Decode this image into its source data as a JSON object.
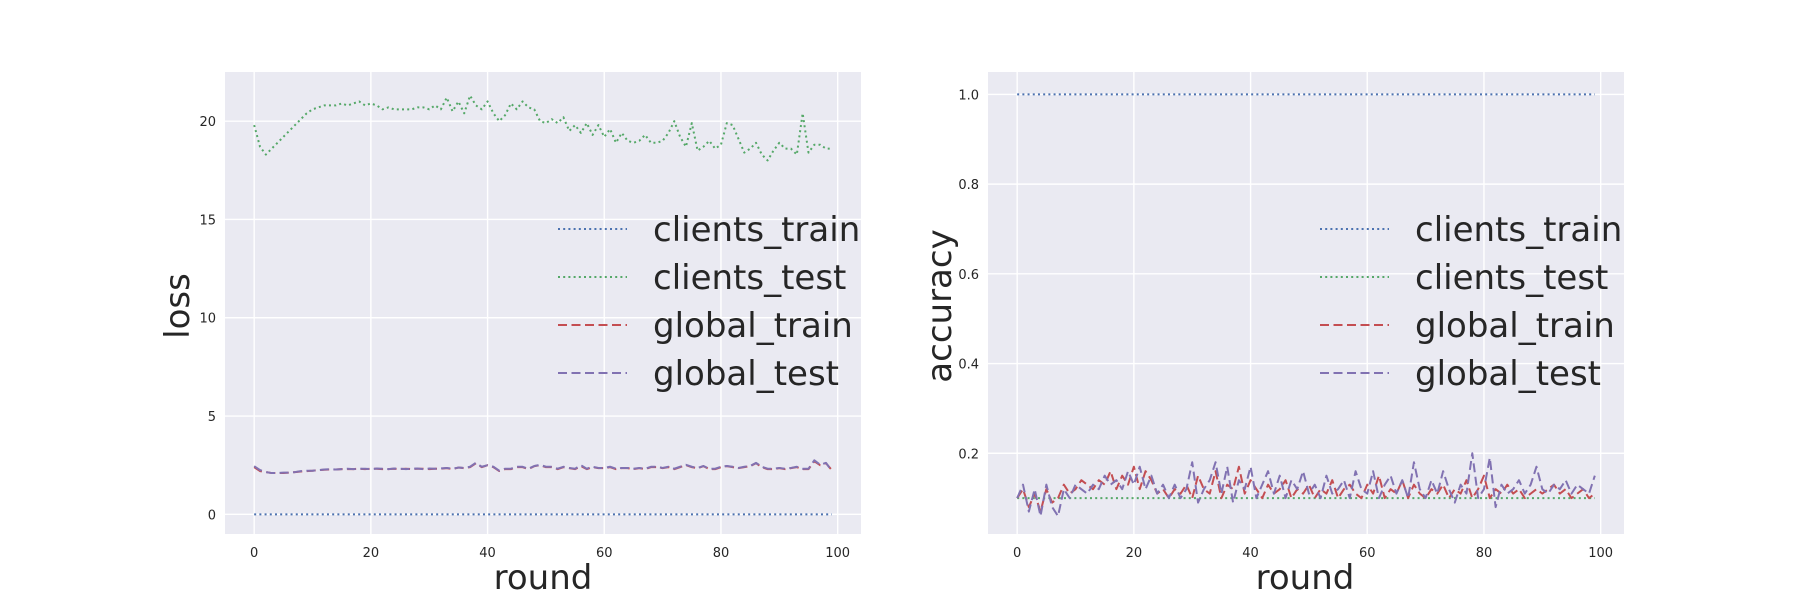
{
  "colors": {
    "clients_train": "#4c72b0",
    "clients_test": "#55a868",
    "global_train": "#c44e52",
    "global_test": "#8172b2",
    "plot_background": "#eaeaf2",
    "grid": "#ffffff"
  },
  "chart_data": [
    {
      "type": "line",
      "xlabel": "round",
      "ylabel": "loss",
      "xlim": [
        -5,
        104
      ],
      "ylim": [
        -1,
        22.5
      ],
      "xticks": [
        "0",
        "20",
        "40",
        "60",
        "80",
        "100"
      ],
      "yticks": [
        "0",
        "5",
        "10",
        "15",
        "20"
      ],
      "grid": true,
      "legend_position": "center-right",
      "series": [
        {
          "name": "clients_train",
          "style": "dotted",
          "x": [
            0,
            99
          ],
          "values": [
            0.0,
            0.0
          ]
        },
        {
          "name": "clients_test",
          "style": "dotted",
          "x": [
            0,
            1,
            2,
            3,
            4,
            5,
            6,
            7,
            8,
            9,
            10,
            11,
            12,
            13,
            14,
            15,
            16,
            17,
            18,
            19,
            20,
            21,
            22,
            23,
            24,
            25,
            26,
            27,
            28,
            29,
            30,
            31,
            32,
            33,
            34,
            35,
            36,
            37,
            38,
            39,
            40,
            41,
            42,
            43,
            44,
            45,
            46,
            47,
            48,
            49,
            50,
            51,
            52,
            53,
            54,
            55,
            56,
            57,
            58,
            59,
            60,
            61,
            62,
            63,
            64,
            65,
            66,
            67,
            68,
            69,
            70,
            71,
            72,
            73,
            74,
            75,
            76,
            77,
            78,
            79,
            80,
            81,
            82,
            83,
            84,
            85,
            86,
            87,
            88,
            89,
            90,
            91,
            92,
            93,
            94,
            95,
            96,
            97,
            98,
            99
          ],
          "values": [
            19.8,
            18.7,
            18.3,
            18.6,
            18.9,
            19.2,
            19.5,
            19.8,
            20.1,
            20.4,
            20.6,
            20.7,
            20.8,
            20.8,
            20.8,
            20.9,
            20.8,
            20.9,
            21.0,
            20.8,
            20.9,
            20.8,
            20.6,
            20.7,
            20.6,
            20.6,
            20.6,
            20.6,
            20.7,
            20.7,
            20.6,
            20.8,
            20.6,
            21.2,
            20.5,
            21.0,
            20.4,
            21.3,
            20.8,
            20.6,
            21.0,
            20.4,
            20.0,
            20.3,
            20.9,
            20.6,
            21.0,
            20.7,
            20.6,
            20.0,
            19.9,
            20.1,
            19.9,
            20.2,
            19.5,
            19.8,
            19.4,
            19.9,
            19.3,
            19.8,
            19.2,
            19.6,
            18.9,
            19.4,
            19.0,
            18.9,
            19.0,
            19.3,
            18.9,
            18.9,
            19.0,
            19.4,
            20.0,
            19.2,
            18.7,
            19.9,
            18.5,
            18.7,
            19.0,
            18.6,
            18.8,
            19.9,
            19.8,
            19.1,
            18.4,
            18.6,
            18.9,
            18.3,
            18.0,
            18.5,
            18.9,
            18.6,
            18.6,
            18.3,
            20.4,
            18.4,
            18.8,
            18.8,
            18.6,
            18.6
          ]
        },
        {
          "name": "global_train",
          "style": "dashed",
          "x": [
            0,
            1,
            2,
            3,
            4,
            5,
            6,
            7,
            8,
            9,
            10,
            11,
            12,
            13,
            14,
            15,
            16,
            17,
            18,
            19,
            20,
            21,
            22,
            23,
            24,
            25,
            26,
            27,
            28,
            29,
            30,
            31,
            32,
            33,
            34,
            35,
            36,
            37,
            38,
            39,
            40,
            41,
            42,
            43,
            44,
            45,
            46,
            47,
            48,
            49,
            50,
            51,
            52,
            53,
            54,
            55,
            56,
            57,
            58,
            59,
            60,
            61,
            62,
            63,
            64,
            65,
            66,
            67,
            68,
            69,
            70,
            71,
            72,
            73,
            74,
            75,
            76,
            77,
            78,
            79,
            80,
            81,
            82,
            83,
            84,
            85,
            86,
            87,
            88,
            89,
            90,
            91,
            92,
            93,
            94,
            95,
            96,
            97,
            98,
            99
          ],
          "values": [
            2.4,
            2.2,
            2.15,
            2.1,
            2.1,
            2.1,
            2.12,
            2.15,
            2.18,
            2.2,
            2.22,
            2.25,
            2.27,
            2.28,
            2.28,
            2.3,
            2.3,
            2.3,
            2.32,
            2.3,
            2.32,
            2.32,
            2.3,
            2.3,
            2.32,
            2.3,
            2.32,
            2.3,
            2.32,
            2.32,
            2.3,
            2.32,
            2.32,
            2.35,
            2.3,
            2.38,
            2.35,
            2.4,
            2.6,
            2.4,
            2.5,
            2.4,
            2.2,
            2.3,
            2.3,
            2.4,
            2.4,
            2.3,
            2.45,
            2.5,
            2.4,
            2.4,
            2.3,
            2.4,
            2.35,
            2.3,
            2.45,
            2.3,
            2.4,
            2.35,
            2.35,
            2.4,
            2.3,
            2.35,
            2.35,
            2.3,
            2.35,
            2.3,
            2.4,
            2.4,
            2.35,
            2.4,
            2.3,
            2.4,
            2.5,
            2.4,
            2.35,
            2.45,
            2.3,
            2.3,
            2.4,
            2.45,
            2.4,
            2.35,
            2.4,
            2.45,
            2.6,
            2.4,
            2.3,
            2.3,
            2.35,
            2.3,
            2.35,
            2.4,
            2.3,
            2.3,
            2.7,
            2.5,
            2.6,
            2.25
          ]
        },
        {
          "name": "global_test",
          "style": "dashed",
          "x": [
            0,
            1,
            2,
            3,
            4,
            5,
            6,
            7,
            8,
            9,
            10,
            11,
            12,
            13,
            14,
            15,
            16,
            17,
            18,
            19,
            20,
            21,
            22,
            23,
            24,
            25,
            26,
            27,
            28,
            29,
            30,
            31,
            32,
            33,
            34,
            35,
            36,
            37,
            38,
            39,
            40,
            41,
            42,
            43,
            44,
            45,
            46,
            47,
            48,
            49,
            50,
            51,
            52,
            53,
            54,
            55,
            56,
            57,
            58,
            59,
            60,
            61,
            62,
            63,
            64,
            65,
            66,
            67,
            68,
            69,
            70,
            71,
            72,
            73,
            74,
            75,
            76,
            77,
            78,
            79,
            80,
            81,
            82,
            83,
            84,
            85,
            86,
            87,
            88,
            89,
            90,
            91,
            92,
            93,
            94,
            95,
            96,
            97,
            98,
            99
          ],
          "values": [
            2.45,
            2.25,
            2.15,
            2.1,
            2.1,
            2.12,
            2.12,
            2.15,
            2.2,
            2.22,
            2.22,
            2.25,
            2.28,
            2.3,
            2.28,
            2.3,
            2.32,
            2.3,
            2.32,
            2.32,
            2.3,
            2.33,
            2.32,
            2.3,
            2.33,
            2.32,
            2.3,
            2.32,
            2.33,
            2.3,
            2.33,
            2.32,
            2.34,
            2.36,
            2.32,
            2.38,
            2.36,
            2.42,
            2.62,
            2.42,
            2.5,
            2.42,
            2.22,
            2.32,
            2.32,
            2.42,
            2.42,
            2.32,
            2.46,
            2.52,
            2.42,
            2.42,
            2.32,
            2.42,
            2.36,
            2.32,
            2.5,
            2.32,
            2.42,
            2.36,
            2.36,
            2.42,
            2.32,
            2.36,
            2.36,
            2.32,
            2.36,
            2.32,
            2.42,
            2.42,
            2.36,
            2.42,
            2.32,
            2.42,
            2.52,
            2.42,
            2.36,
            2.46,
            2.32,
            2.32,
            2.42,
            2.46,
            2.42,
            2.36,
            2.42,
            2.46,
            2.62,
            2.42,
            2.32,
            2.32,
            2.36,
            2.32,
            2.36,
            2.42,
            2.32,
            2.32,
            2.75,
            2.52,
            2.62,
            2.2
          ]
        }
      ]
    },
    {
      "type": "line",
      "xlabel": "round",
      "ylabel": "accuracy",
      "xlim": [
        -5,
        104
      ],
      "ylim": [
        0.02,
        1.05
      ],
      "xticks": [
        "0",
        "20",
        "40",
        "60",
        "80",
        "100"
      ],
      "yticks": [
        "0.2",
        "0.4",
        "0.6",
        "0.8",
        "1.0"
      ],
      "grid": true,
      "legend_position": "center-right",
      "series": [
        {
          "name": "clients_train",
          "style": "dotted",
          "x": [
            0,
            99
          ],
          "values": [
            1.0,
            1.0
          ]
        },
        {
          "name": "clients_test",
          "style": "dotted",
          "x": [
            0,
            99
          ],
          "values": [
            0.1,
            0.1
          ]
        },
        {
          "name": "global_train",
          "style": "dashed",
          "x": [
            0,
            1,
            2,
            3,
            4,
            5,
            6,
            7,
            8,
            9,
            10,
            11,
            12,
            13,
            14,
            15,
            16,
            17,
            18,
            19,
            20,
            21,
            22,
            23,
            24,
            25,
            26,
            27,
            28,
            29,
            30,
            31,
            32,
            33,
            34,
            35,
            36,
            37,
            38,
            39,
            40,
            41,
            42,
            43,
            44,
            45,
            46,
            47,
            48,
            49,
            50,
            51,
            52,
            53,
            54,
            55,
            56,
            57,
            58,
            59,
            60,
            61,
            62,
            63,
            64,
            65,
            66,
            67,
            68,
            69,
            70,
            71,
            72,
            73,
            74,
            75,
            76,
            77,
            78,
            79,
            80,
            81,
            82,
            83,
            84,
            85,
            86,
            87,
            88,
            89,
            90,
            91,
            92,
            93,
            94,
            95,
            96,
            97,
            98,
            99
          ],
          "values": [
            0.1,
            0.12,
            0.08,
            0.11,
            0.07,
            0.12,
            0.09,
            0.1,
            0.13,
            0.11,
            0.12,
            0.14,
            0.13,
            0.12,
            0.14,
            0.13,
            0.16,
            0.12,
            0.15,
            0.13,
            0.17,
            0.12,
            0.16,
            0.14,
            0.11,
            0.12,
            0.1,
            0.12,
            0.11,
            0.13,
            0.1,
            0.15,
            0.12,
            0.11,
            0.16,
            0.1,
            0.13,
            0.12,
            0.17,
            0.11,
            0.14,
            0.12,
            0.1,
            0.13,
            0.11,
            0.12,
            0.14,
            0.1,
            0.12,
            0.11,
            0.13,
            0.1,
            0.12,
            0.11,
            0.14,
            0.1,
            0.12,
            0.13,
            0.11,
            0.1,
            0.13,
            0.11,
            0.15,
            0.1,
            0.12,
            0.11,
            0.14,
            0.1,
            0.13,
            0.11,
            0.1,
            0.12,
            0.11,
            0.13,
            0.1,
            0.12,
            0.11,
            0.14,
            0.1,
            0.12,
            0.15,
            0.1,
            0.12,
            0.11,
            0.13,
            0.11,
            0.12,
            0.1,
            0.11,
            0.12,
            0.11,
            0.12,
            0.13,
            0.11,
            0.12,
            0.1,
            0.11,
            0.12,
            0.1,
            0.11
          ]
        },
        {
          "name": "global_test",
          "style": "dashed",
          "x": [
            0,
            1,
            2,
            3,
            4,
            5,
            6,
            7,
            8,
            9,
            10,
            11,
            12,
            13,
            14,
            15,
            16,
            17,
            18,
            19,
            20,
            21,
            22,
            23,
            24,
            25,
            26,
            27,
            28,
            29,
            30,
            31,
            32,
            33,
            34,
            35,
            36,
            37,
            38,
            39,
            40,
            41,
            42,
            43,
            44,
            45,
            46,
            47,
            48,
            49,
            50,
            51,
            52,
            53,
            54,
            55,
            56,
            57,
            58,
            59,
            60,
            61,
            62,
            63,
            64,
            65,
            66,
            67,
            68,
            69,
            70,
            71,
            72,
            73,
            74,
            75,
            76,
            77,
            78,
            79,
            80,
            81,
            82,
            83,
            84,
            85,
            86,
            87,
            88,
            89,
            90,
            91,
            92,
            93,
            94,
            95,
            96,
            97,
            98,
            99
          ],
          "values": [
            0.1,
            0.13,
            0.07,
            0.12,
            0.06,
            0.13,
            0.08,
            0.06,
            0.12,
            0.1,
            0.13,
            0.12,
            0.11,
            0.13,
            0.12,
            0.15,
            0.13,
            0.14,
            0.12,
            0.16,
            0.13,
            0.17,
            0.12,
            0.15,
            0.11,
            0.13,
            0.1,
            0.13,
            0.1,
            0.12,
            0.18,
            0.09,
            0.12,
            0.14,
            0.18,
            0.11,
            0.17,
            0.09,
            0.14,
            0.12,
            0.17,
            0.1,
            0.13,
            0.16,
            0.11,
            0.15,
            0.1,
            0.14,
            0.12,
            0.16,
            0.11,
            0.13,
            0.1,
            0.15,
            0.11,
            0.12,
            0.14,
            0.1,
            0.16,
            0.12,
            0.11,
            0.16,
            0.1,
            0.13,
            0.15,
            0.11,
            0.14,
            0.1,
            0.18,
            0.12,
            0.1,
            0.14,
            0.11,
            0.16,
            0.12,
            0.09,
            0.13,
            0.11,
            0.2,
            0.1,
            0.12,
            0.19,
            0.08,
            0.13,
            0.11,
            0.12,
            0.14,
            0.11,
            0.13,
            0.17,
            0.12,
            0.11,
            0.13,
            0.12,
            0.14,
            0.11,
            0.13,
            0.12,
            0.11,
            0.15
          ]
        }
      ]
    }
  ]
}
